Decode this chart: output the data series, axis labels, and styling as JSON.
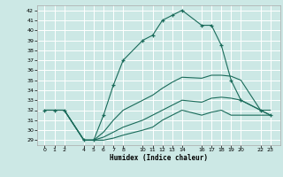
{
  "xlabel": "Humidex (Indice chaleur)",
  "bg_color": "#cce8e5",
  "grid_color": "#ffffff",
  "line_color": "#1a6b5a",
  "ylim": [
    28.5,
    42.5
  ],
  "yticks": [
    29,
    30,
    31,
    32,
    33,
    34,
    35,
    36,
    37,
    38,
    39,
    40,
    41,
    42
  ],
  "xticks": [
    0,
    1,
    2,
    4,
    5,
    6,
    7,
    8,
    10,
    11,
    12,
    13,
    14,
    16,
    17,
    18,
    19,
    20,
    22,
    23
  ],
  "xlim": [
    -0.8,
    24.0
  ],
  "series": [
    {
      "x": [
        0,
        1,
        2,
        4,
        5,
        6,
        7,
        8,
        10,
        11,
        12,
        13,
        14,
        16,
        17,
        18,
        19,
        20,
        22,
        23
      ],
      "y": [
        32,
        32,
        32,
        29,
        29,
        31.5,
        34.5,
        37,
        39,
        39.5,
        41,
        41.5,
        42,
        40.5,
        40.5,
        38.5,
        35,
        33,
        32,
        31.5
      ],
      "marker": "+"
    },
    {
      "x": [
        0,
        1,
        2,
        4,
        5,
        6,
        7,
        8,
        10,
        11,
        12,
        13,
        14,
        16,
        17,
        18,
        19,
        20,
        22,
        23
      ],
      "y": [
        32,
        32,
        32,
        29,
        29,
        29.8,
        31.0,
        32.0,
        33.0,
        33.5,
        34.2,
        34.8,
        35.3,
        35.2,
        35.5,
        35.5,
        35.4,
        35.0,
        32.0,
        32.0
      ],
      "marker": null
    },
    {
      "x": [
        0,
        1,
        2,
        4,
        5,
        6,
        7,
        8,
        10,
        11,
        12,
        13,
        14,
        16,
        17,
        18,
        19,
        20,
        22,
        23
      ],
      "y": [
        32,
        32,
        32,
        29,
        29,
        29.3,
        29.8,
        30.3,
        31.0,
        31.5,
        32.0,
        32.5,
        33.0,
        32.8,
        33.2,
        33.3,
        33.2,
        33.0,
        32.0,
        31.5
      ],
      "marker": null
    },
    {
      "x": [
        0,
        1,
        2,
        4,
        5,
        6,
        7,
        8,
        10,
        11,
        12,
        13,
        14,
        16,
        17,
        18,
        19,
        20,
        22,
        23
      ],
      "y": [
        32,
        32,
        32,
        29,
        29,
        29.0,
        29.2,
        29.5,
        30.0,
        30.3,
        31.0,
        31.5,
        32.0,
        31.5,
        31.8,
        32.0,
        31.5,
        31.5,
        31.5,
        31.5
      ],
      "marker": null
    }
  ]
}
